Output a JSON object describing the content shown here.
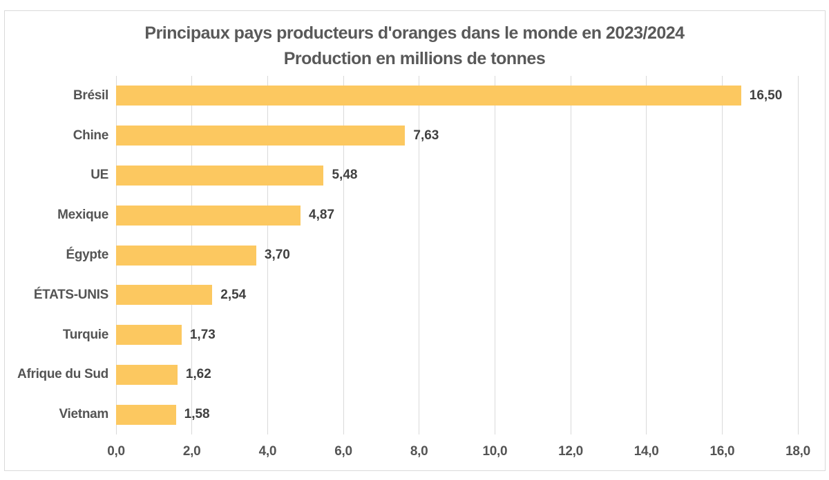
{
  "chart_data": {
    "type": "bar",
    "orientation": "horizontal",
    "title": "Principaux pays producteurs d'oranges dans le monde en 2023/2024",
    "subtitle": "Production en millions de tonnes",
    "categories": [
      "Brésil",
      "Chine",
      "UE",
      "Mexique",
      "Égypte",
      "ÉTATS-UNIS",
      "Turquie",
      "Afrique du Sud",
      "Vietnam"
    ],
    "values": [
      16.5,
      7.63,
      5.48,
      4.87,
      3.7,
      2.54,
      1.73,
      1.62,
      1.58
    ],
    "value_labels": [
      "16,50",
      "7,63",
      "5,48",
      "4,87",
      "3,70",
      "2,54",
      "1,73",
      "1,62",
      "1,58"
    ],
    "xlim": [
      0,
      18
    ],
    "x_tick_values": [
      0,
      2,
      4,
      6,
      8,
      10,
      12,
      14,
      16,
      18
    ],
    "x_tick_labels": [
      "0,0",
      "2,0",
      "4,0",
      "6,0",
      "8,0",
      "10,0",
      "12,0",
      "14,0",
      "16,0",
      "18,0"
    ],
    "grid": "vertical",
    "legend": "none",
    "colors": {
      "bar": "#FCC860",
      "gridline": "#D9D9D9",
      "border": "#D9D9D9",
      "title_text": "#595959",
      "axis_text": "#545454",
      "data_label_text": "#404040",
      "background": "#FFFFFF"
    }
  }
}
